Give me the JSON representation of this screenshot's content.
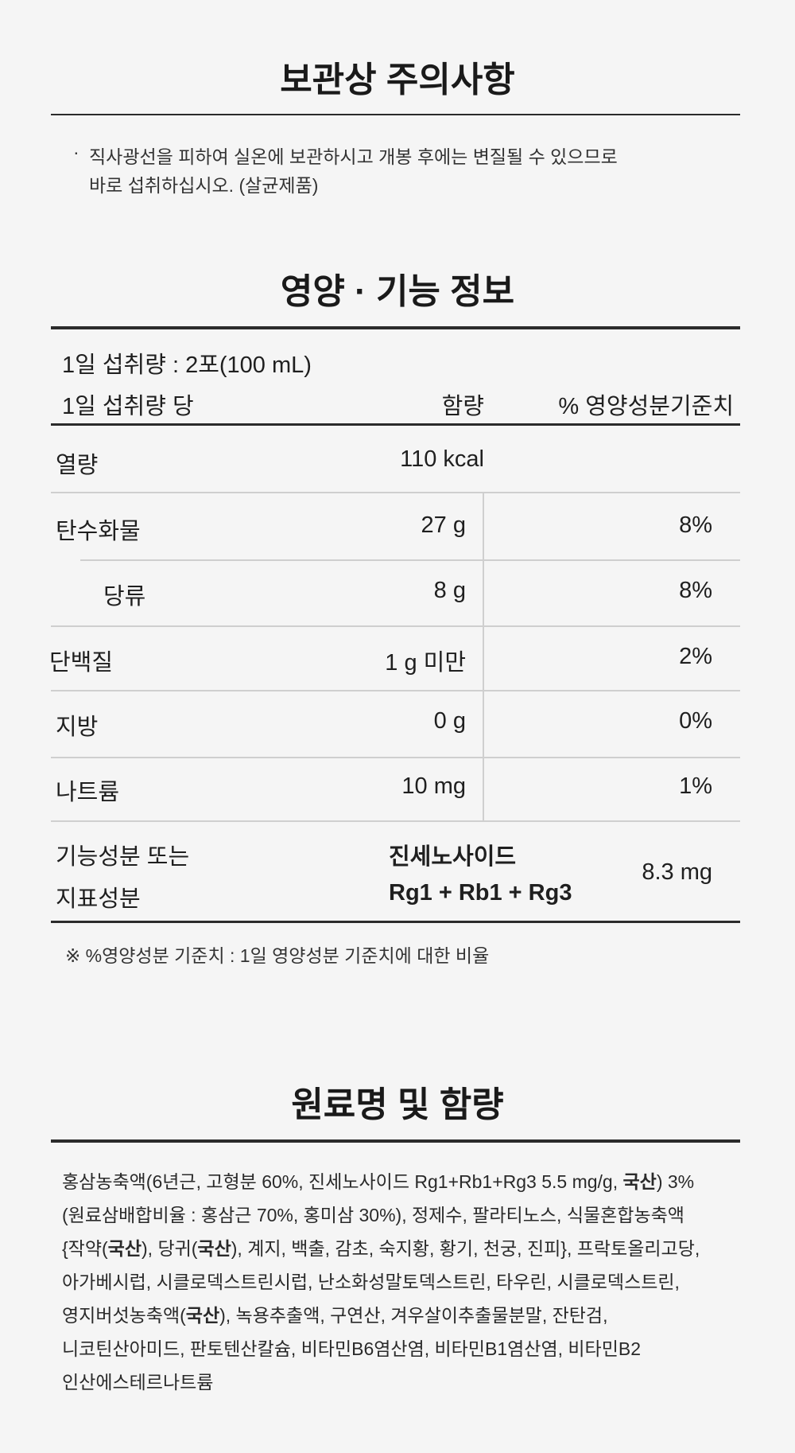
{
  "storage": {
    "title": "보관상 주의사항",
    "bullet": "·",
    "lines": [
      "직사광선을 피하여 실온에 보관하시고 개봉 후에는 변질될 수 있으므로",
      "바로 섭취하십시오. (살균제품)"
    ]
  },
  "nutrition": {
    "title": "영양 · 기능 정보",
    "serving": "1일 섭취량 : 2포(100 mL)",
    "header": {
      "label": "1일 섭취량 당",
      "amount": "함량",
      "percent": "% 영양성분기준치"
    },
    "rows": [
      {
        "name": "열량",
        "amount": "110 kcal",
        "percent": ""
      },
      {
        "name": "탄수화물",
        "amount": "27 g",
        "percent": "8%"
      },
      {
        "name": "당류",
        "amount": "8 g",
        "percent": "8%"
      },
      {
        "name": "단백질",
        "amount": "1 g 미만",
        "percent": "2%"
      },
      {
        "name": "지방",
        "amount": "0 g",
        "percent": "0%"
      },
      {
        "name": "나트륨",
        "amount": "10 mg",
        "percent": "1%"
      }
    ],
    "functional": {
      "label1": "기능성분 또는",
      "label2": "지표성분",
      "comp1": "진세노사이드",
      "comp2": "Rg1 + Rb1 + Rg3",
      "amount": "8.3 mg"
    },
    "footnote": "※ %영양성분 기준치 : 1일 영양성분 기준치에 대한 비율"
  },
  "ingredients": {
    "title": "원료명 및 함량",
    "lines": [
      [
        "홍삼농축액(6년근, 고형분 60%, 진세노사이드 Rg1+Rb1+Rg3 5.5 mg/g, ",
        "국산",
        ") 3%"
      ],
      [
        "(원료삼배합비율 : 홍삼근 70%, 홍미삼 30%), 정제수, 팔라티노스, 식물혼합농축액"
      ],
      [
        "{작약(",
        "국산",
        "), 당귀(",
        "국산",
        "), 계지, 백출, 감초, 숙지황, 황기, 천궁, 진피}, 프락토올리고당,"
      ],
      [
        "아가베시럽, 시클로덱스트린시럽, 난소화성말토덱스트린, 타우린, 시클로덱스트린,"
      ],
      [
        "영지버섯농축액(",
        "국산",
        "), 녹용추출액, 구연산, 겨우살이추출물분말, 잔탄검,"
      ],
      [
        "니코틴산아미드, 판토텐산칼슘, 비타민B6염산염, 비타민B1염산염, 비타민B2"
      ],
      [
        "인산에스테르나트륨"
      ]
    ]
  }
}
